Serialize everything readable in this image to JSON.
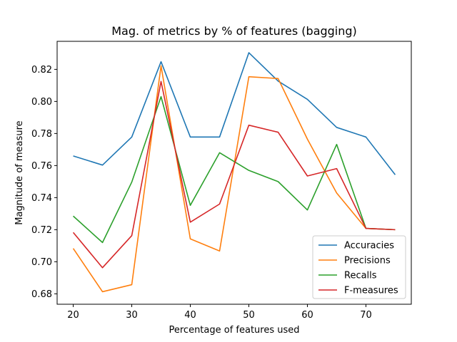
{
  "chart_data": {
    "type": "line",
    "title": "Mag. of metrics by % of features (bagging)",
    "xlabel": "Percentage of features used",
    "ylabel": "Magnitude of measure",
    "x": [
      20,
      25,
      30,
      35,
      40,
      45,
      50,
      55,
      60,
      65,
      70,
      75
    ],
    "xlim": [
      17.25,
      77.75
    ],
    "ylim": [
      0.6735,
      0.8375
    ],
    "xticks": [
      20,
      30,
      40,
      50,
      60,
      70
    ],
    "yticks": [
      0.68,
      0.7,
      0.72,
      0.74,
      0.76,
      0.78,
      0.8,
      0.82
    ],
    "ytick_labels": [
      "0.68",
      "0.70",
      "0.72",
      "0.74",
      "0.76",
      "0.78",
      "0.80",
      "0.82"
    ],
    "grid": false,
    "legend_position": "lower-right",
    "series": [
      {
        "name": "Accuracies",
        "color": "#1f77b4",
        "values": [
          0.766,
          0.7603,
          0.7778,
          0.8248,
          0.7778,
          0.7778,
          0.8304,
          0.8127,
          0.8013,
          0.7838,
          0.7778,
          0.7543
        ]
      },
      {
        "name": "Precisions",
        "color": "#ff7f0e",
        "values": [
          0.7083,
          0.6813,
          0.6857,
          0.8222,
          0.7143,
          0.7067,
          0.8154,
          0.8143,
          0.7765,
          0.7429,
          0.7208,
          0.72
        ]
      },
      {
        "name": "Recalls",
        "color": "#2ca02c",
        "values": [
          0.7285,
          0.712,
          0.7497,
          0.803,
          0.7352,
          0.768,
          0.757,
          0.75,
          0.7323,
          0.7732,
          0.7208,
          0.72
        ]
      },
      {
        "name": "F-measures",
        "color": "#d62728",
        "values": [
          0.7183,
          0.6963,
          0.7163,
          0.8125,
          0.7247,
          0.736,
          0.7852,
          0.7808,
          0.7535,
          0.7581,
          0.7208,
          0.72
        ]
      }
    ]
  }
}
